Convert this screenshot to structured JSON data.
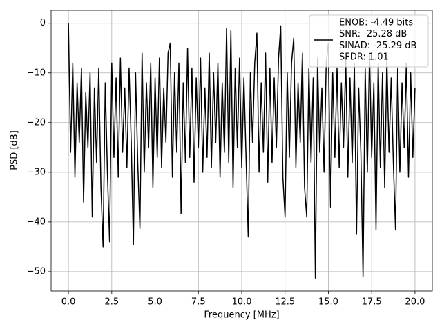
{
  "chart_data": {
    "type": "line",
    "xlabel": "Frequency [MHz]",
    "ylabel": "PSD [dB]",
    "xlim": [
      -1,
      21
    ],
    "ylim": [
      -53.9,
      2.6
    ],
    "grid": true,
    "legend": "upper right",
    "xticks": [
      {
        "value": 0,
        "label": "0.0"
      },
      2.5,
      {
        "value": 5,
        "label": "5.0"
      },
      7.5,
      {
        "value": 10,
        "label": "10.0"
      },
      12.5,
      {
        "value": 15,
        "label": "15.0"
      },
      17.5,
      {
        "value": 20,
        "label": "20.0"
      }
    ],
    "yticks": [
      {
        "value": 0,
        "label": "0"
      },
      {
        "value": -10,
        "label": "−10"
      },
      {
        "value": -20,
        "label": "−20"
      },
      {
        "value": -30,
        "label": "−30"
      },
      {
        "value": -40,
        "label": "−40"
      },
      {
        "value": -50,
        "label": "−50"
      }
    ],
    "legend_lines": [
      "ENOB: -4.49 bits",
      "SNR: -25.28 dB",
      "SINAD: -25.29 dB",
      "SFDR: 1.01"
    ],
    "x": [
      0,
      0.125,
      0.25,
      0.375,
      0.5,
      0.625,
      0.75,
      0.875,
      1,
      1.125,
      1.25,
      1.375,
      1.5,
      1.625,
      1.75,
      1.875,
      2,
      2.125,
      2.25,
      2.375,
      2.5,
      2.625,
      2.75,
      2.875,
      3,
      3.125,
      3.25,
      3.375,
      3.5,
      3.625,
      3.75,
      3.875,
      4,
      4.125,
      4.25,
      4.375,
      4.5,
      4.625,
      4.75,
      4.875,
      5,
      5.125,
      5.25,
      5.375,
      5.5,
      5.625,
      5.75,
      5.875,
      6,
      6.125,
      6.25,
      6.375,
      6.5,
      6.625,
      6.75,
      6.875,
      7,
      7.125,
      7.25,
      7.375,
      7.5,
      7.625,
      7.75,
      7.875,
      8,
      8.125,
      8.25,
      8.375,
      8.5,
      8.625,
      8.75,
      8.875,
      9,
      9.125,
      9.25,
      9.375,
      9.5,
      9.625,
      9.75,
      9.875,
      10,
      10.125,
      10.25,
      10.375,
      10.5,
      10.625,
      10.75,
      10.875,
      11,
      11.125,
      11.25,
      11.375,
      11.5,
      11.625,
      11.75,
      11.875,
      12,
      12.125,
      12.25,
      12.375,
      12.5,
      12.625,
      12.75,
      12.875,
      13,
      13.125,
      13.25,
      13.375,
      13.5,
      13.625,
      13.75,
      13.875,
      14,
      14.125,
      14.25,
      14.375,
      14.5,
      14.625,
      14.75,
      14.875,
      15,
      15.125,
      15.25,
      15.375,
      15.5,
      15.625,
      15.75,
      15.875,
      16,
      16.125,
      16.25,
      16.375,
      16.5,
      16.625,
      16.75,
      16.875,
      17,
      17.125,
      17.25,
      17.375,
      17.5,
      17.625,
      17.75,
      17.875,
      18,
      18.125,
      18.25,
      18.375,
      18.5,
      18.625,
      18.75,
      18.875,
      19,
      19.125,
      19.25,
      19.375,
      19.5,
      19.625,
      19.75,
      19.875,
      20
    ],
    "series": [
      {
        "color": "#000000",
        "values": [
          0,
          -26,
          -8,
          -31,
          -12,
          -24,
          -9,
          -36,
          -14,
          -25,
          -10,
          -39,
          -13,
          -28,
          -9,
          -33,
          -45,
          -12,
          -30,
          -44,
          -8,
          -27,
          -11,
          -31,
          -7,
          -26,
          -13,
          -29,
          -9,
          -24,
          -44.6,
          -10,
          -28,
          -41.3,
          -6,
          -30,
          -12,
          -25,
          -8,
          -33,
          -11,
          -27,
          -7,
          -29,
          -13,
          -24,
          -6,
          -4,
          -31,
          -10,
          -26,
          -8,
          -38.3,
          -12,
          -28,
          -5,
          -27,
          -9,
          -32,
          -11,
          -25,
          -7,
          -30,
          -13,
          -27,
          -6,
          -29,
          -10,
          -24,
          -8,
          -31,
          -12,
          -26,
          -1,
          -28,
          -1.5,
          -33,
          -9,
          -25,
          -7,
          -29,
          -11,
          -27,
          -43,
          -10,
          -24,
          -8,
          -2,
          -30,
          -12,
          -26,
          -6,
          -32,
          -9,
          -28,
          -11,
          -25,
          -7,
          -0.5,
          -31,
          -39,
          -10,
          -27,
          -8,
          -3,
          -29,
          -12,
          -24,
          -6,
          -33,
          -39,
          -9,
          -28,
          -11,
          -51.3,
          -7,
          -26,
          -13,
          -30,
          -8,
          -4,
          -37,
          -10,
          -27,
          -9,
          -29,
          -12,
          -25,
          -7,
          -31,
          -11,
          -28,
          -8,
          -42.5,
          -13,
          -26,
          -51,
          -9,
          -30,
          -6,
          -27,
          -12,
          -41.5,
          -8,
          -29,
          -10,
          -33,
          -7,
          -26,
          -11,
          -28,
          -41.5,
          -9,
          -30,
          -12,
          -25,
          -8,
          -31,
          -10,
          -27,
          -13
        ]
      }
    ]
  }
}
